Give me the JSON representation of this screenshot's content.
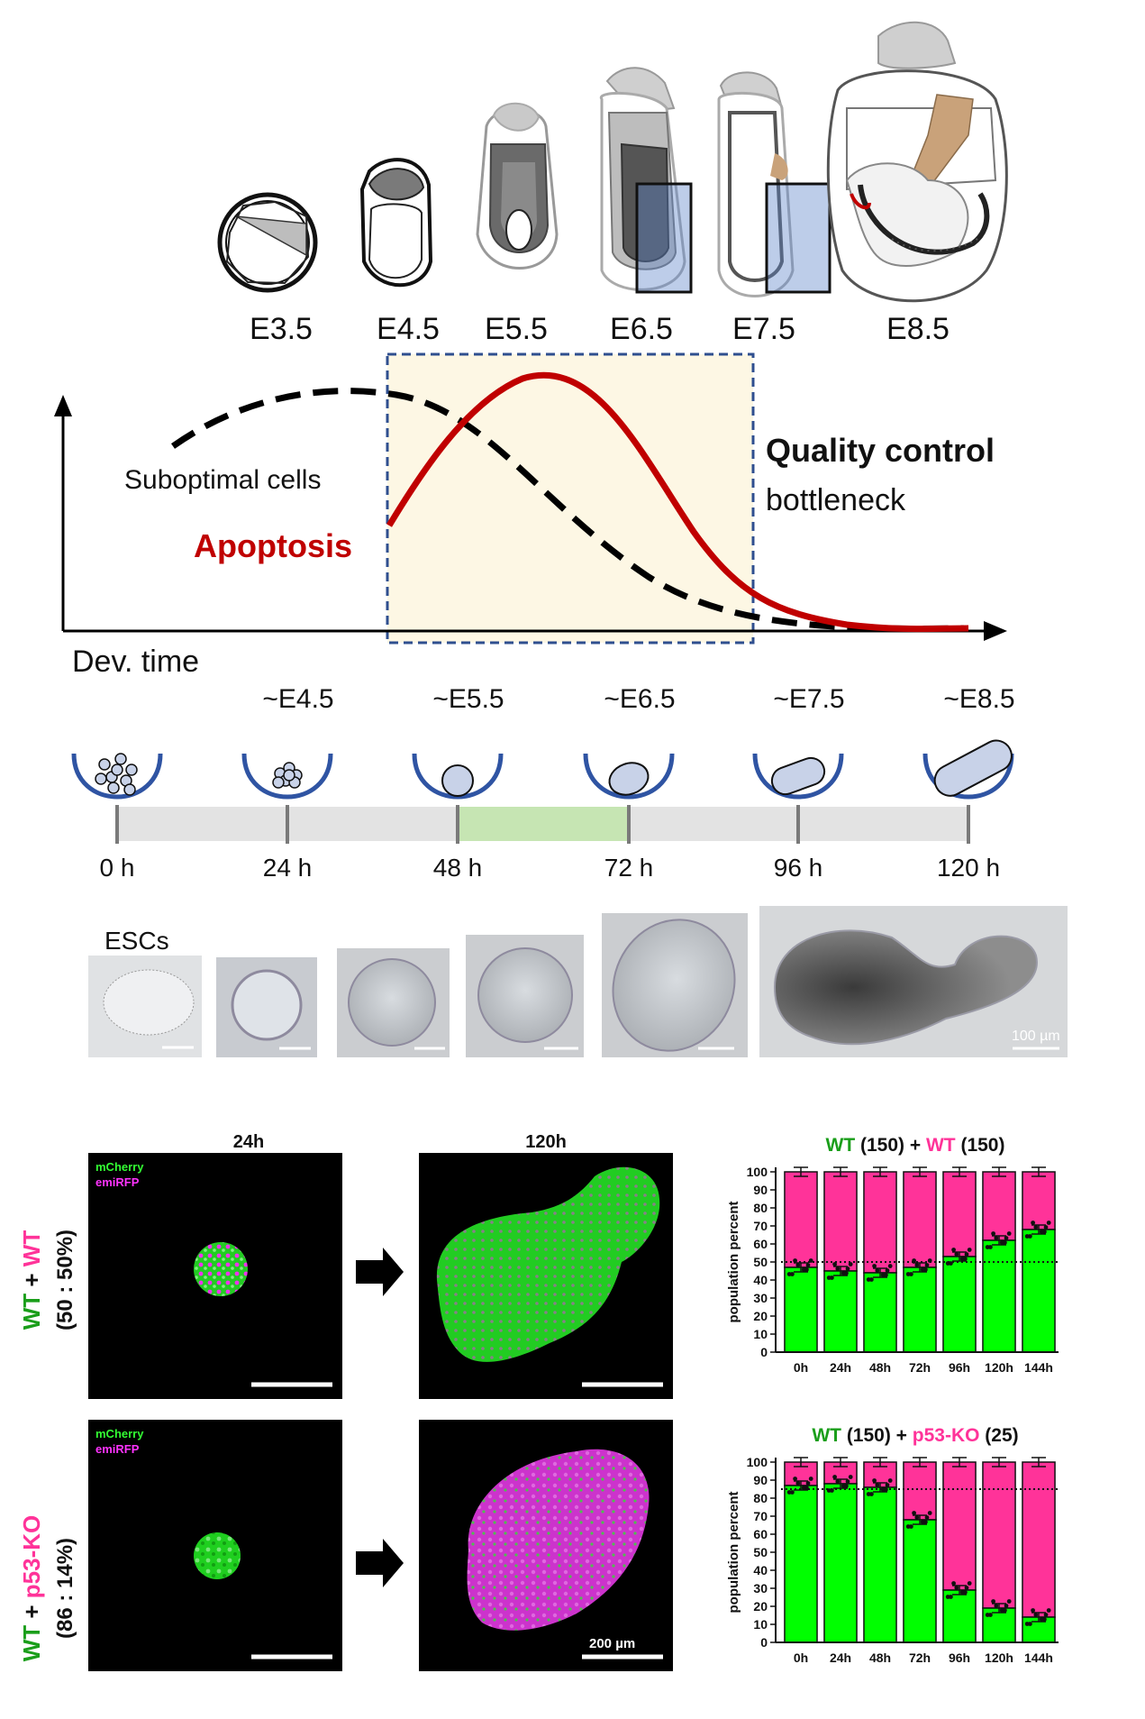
{
  "embryo_stages": [
    "E3.5",
    "E4.5",
    "E5.5",
    "E6.5",
    "E7.5",
    "E8.5"
  ],
  "curve": {
    "label_suboptimal": "Suboptimal cells",
    "label_apoptosis": "Apoptosis",
    "label_quality_line1": "Quality control",
    "label_quality_line2": "bottleneck",
    "x_axis_label": "Dev. time"
  },
  "timeline": {
    "equivalents": [
      "~E4.5",
      "~E5.5",
      "~E6.5",
      "~E7.5",
      "~E8.5"
    ],
    "hours": [
      "0 h",
      "24 h",
      "48 h",
      "72 h",
      "96 h",
      "120 h"
    ]
  },
  "micrographs": {
    "esc_label": "ESCs",
    "scale_label": "100 µm"
  },
  "fluorescence": {
    "col_24h": "24h",
    "col_120h": "120h",
    "legend_mcherry": "mCherry",
    "legend_emirfp": "emiRFP",
    "row1_label_a": "WT",
    "row1_label_plus": " + ",
    "row1_label_b": "WT",
    "row1_ratio": "(50 : 50%)",
    "row2_label_a": "WT",
    "row2_label_plus": " + ",
    "row2_label_b": "p53-KO",
    "row2_ratio": "(86 : 14%)",
    "scale_label": "200 µm"
  },
  "colors": {
    "green": "#00ff00",
    "magenta": "#ff3399",
    "red_curve": "#c00000",
    "blue_box": "#2f4f8f",
    "highlight_bg": "#fdf7e4",
    "timeline_green": "#c6e5b3"
  },
  "chart_data": [
    {
      "type": "bar",
      "stacked": true,
      "title_parts": [
        "WT",
        " (150) + ",
        "WT",
        " (150)"
      ],
      "categories": [
        "0h",
        "24h",
        "48h",
        "72h",
        "96h",
        "120h",
        "144h"
      ],
      "series": [
        {
          "name": "mCherry",
          "values": [
            47,
            45,
            44,
            47,
            53,
            62,
            68
          ]
        },
        {
          "name": "emiRFP",
          "values": [
            53,
            55,
            56,
            53,
            47,
            38,
            32
          ]
        }
      ],
      "ylabel": "population percent",
      "ylim": [
        0,
        100
      ],
      "yticks": [
        0,
        10,
        20,
        30,
        40,
        50,
        60,
        70,
        80,
        90,
        100
      ],
      "reference_line": 50
    },
    {
      "type": "bar",
      "stacked": true,
      "title_parts": [
        "WT",
        " (150) + ",
        "p53-KO",
        " (25)"
      ],
      "categories": [
        "0h",
        "24h",
        "48h",
        "72h",
        "96h",
        "120h",
        "144h"
      ],
      "series": [
        {
          "name": "mCherry",
          "values": [
            87,
            88,
            86,
            68,
            29,
            19,
            14
          ]
        },
        {
          "name": "emiRFP",
          "values": [
            13,
            12,
            14,
            32,
            71,
            81,
            86
          ]
        }
      ],
      "ylabel": "population percent",
      "ylim": [
        0,
        100
      ],
      "yticks": [
        0,
        10,
        20,
        30,
        40,
        50,
        60,
        70,
        80,
        90,
        100
      ],
      "reference_line": 85
    }
  ]
}
